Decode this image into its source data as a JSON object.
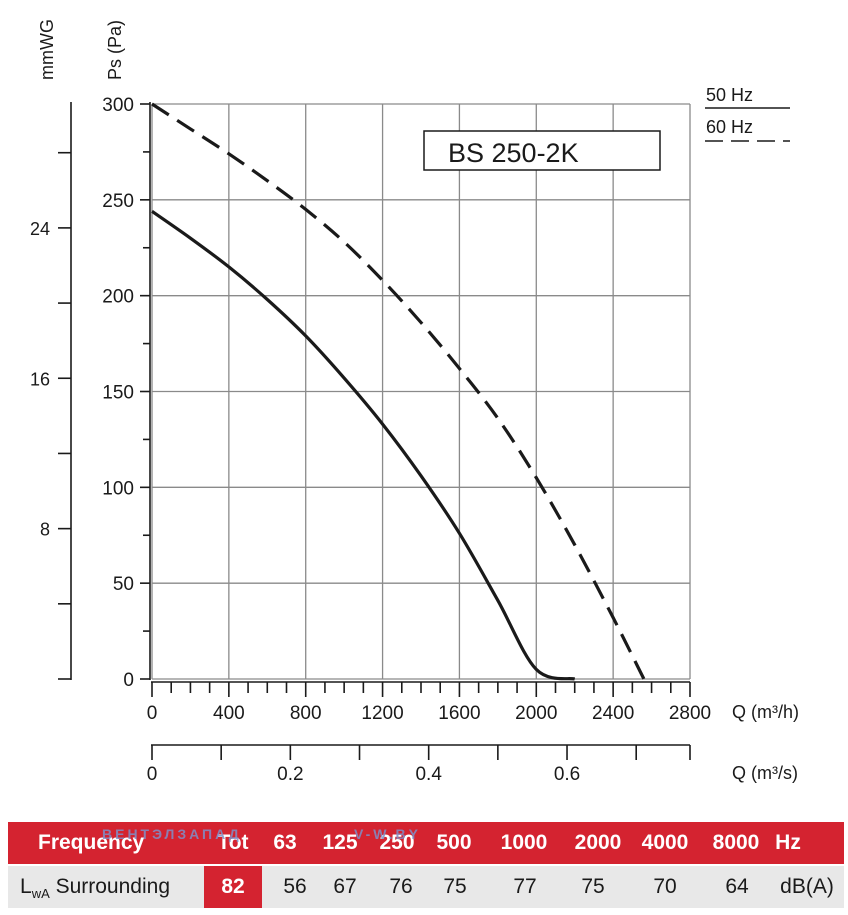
{
  "chart_data": {
    "type": "line",
    "title": "BS 250-2K",
    "ylabel": "Ps (Pa)",
    "ylabel_secondary": "mmWG",
    "xlabel": "Q (m³/h)",
    "xlabel_secondary": "Q (m³/s)",
    "xlim": [
      0,
      2800
    ],
    "ylim": [
      0,
      300
    ],
    "x_ticks": [
      "0",
      "400",
      "800",
      "1200",
      "1600",
      "2000",
      "2400",
      "2800"
    ],
    "y_ticks": [
      "0",
      "50",
      "100",
      "150",
      "200",
      "250",
      "300"
    ],
    "secondary_y_ticks": [
      "8",
      "16",
      "24"
    ],
    "secondary_x_ticks": [
      "0",
      "0.2",
      "0.4",
      "0.6"
    ],
    "grid": true,
    "legend_position": "top-right",
    "series": [
      {
        "name": "50 Hz",
        "style": "solid",
        "x": [
          0,
          200,
          400,
          600,
          800,
          1000,
          1200,
          1400,
          1600,
          1800,
          2000,
          2200
        ],
        "y": [
          244,
          230,
          215,
          198,
          179,
          157,
          133,
          106,
          76,
          41,
          5,
          0
        ]
      },
      {
        "name": "60 Hz",
        "style": "dashed",
        "x": [
          0,
          200,
          400,
          600,
          800,
          1000,
          1200,
          1400,
          1600,
          1800,
          2000,
          2200,
          2400,
          2560
        ],
        "y": [
          300,
          287,
          274,
          260,
          245,
          228,
          208,
          186,
          162,
          136,
          105,
          70,
          32,
          0
        ]
      }
    ]
  },
  "legend": {
    "hz50": "50 Hz",
    "hz60": "60 Hz"
  },
  "sound_table": {
    "header_label": "Frequency",
    "tot_label": "Tot",
    "frequencies": [
      "63",
      "125",
      "250",
      "500",
      "1000",
      "2000",
      "4000",
      "8000"
    ],
    "unit_hz": "Hz",
    "row_label_L": "L",
    "row_label_sub": "wA",
    "row_label_rest": " Surrounding",
    "tot_value": "82",
    "values": [
      "56",
      "67",
      "76",
      "75",
      "77",
      "75",
      "70",
      "64"
    ],
    "unit_db": "dB(A)"
  },
  "watermark": {
    "left": "ВЕНТЭЛЗАПАД",
    "right": "V-W.BY"
  },
  "colors": {
    "curve": "#1a1a1a",
    "grid": "#8a8a8a",
    "table_red": "#d42330",
    "table_grey": "#e8e8e8"
  }
}
